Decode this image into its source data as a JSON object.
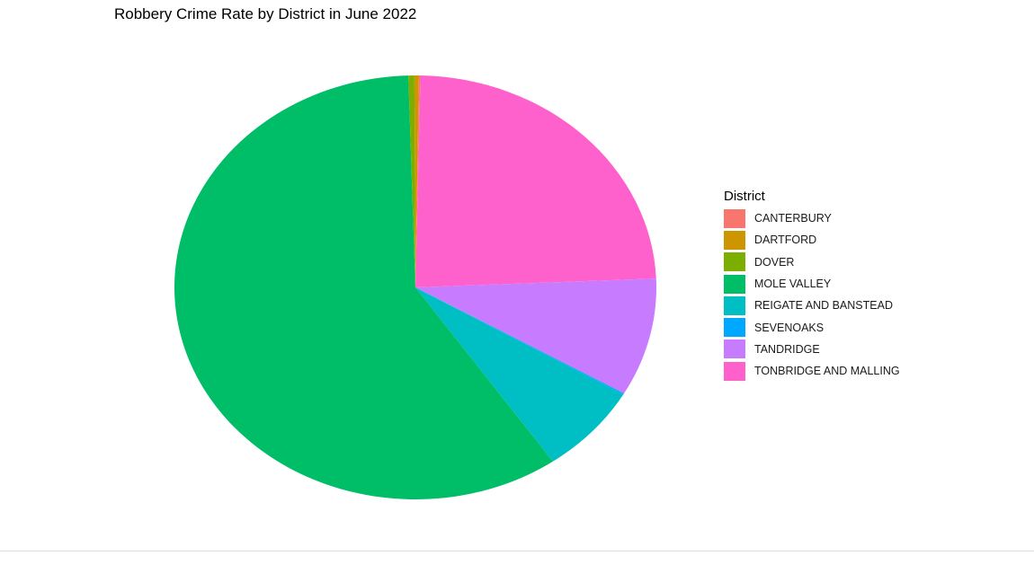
{
  "chart_data": {
    "type": "pie",
    "title": "Robbery Crime Rate by District in June 2022",
    "legend_title": "District",
    "legend_position": "right",
    "slices": [
      {
        "name": "CANTERBURY",
        "value": 0.1,
        "color": "#F8766D"
      },
      {
        "name": "DARTFORD",
        "value": 0.3,
        "color": "#CD9600"
      },
      {
        "name": "DOVER",
        "value": 0.4,
        "color": "#7CAE00"
      },
      {
        "name": "MOLE VALLEY",
        "value": 59.2,
        "color": "#00BE67"
      },
      {
        "name": "REIGATE AND BANSTEAD",
        "value": 6.9,
        "color": "#00BFC4"
      },
      {
        "name": "SEVENOAKS",
        "value": 0.1,
        "color": "#00A9FF"
      },
      {
        "name": "TANDRIDGE",
        "value": 9.0,
        "color": "#C77CFF"
      },
      {
        "name": "TONBRIDGE AND MALLING",
        "value": 24.0,
        "color": "#FF61CC"
      }
    ]
  }
}
